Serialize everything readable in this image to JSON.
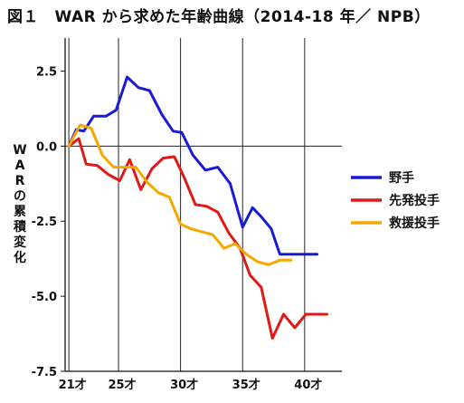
{
  "chart_data": {
    "type": "line",
    "title": "図１　WAR から求めた年齢曲線（2014-18 年／ NPB）",
    "ylabel": "WARの累積変化",
    "xlabel": "",
    "x_ticks": [
      {
        "value": 21,
        "label": "21才"
      },
      {
        "value": 25,
        "label": "25才"
      },
      {
        "value": 30,
        "label": "30才"
      },
      {
        "value": 35,
        "label": "35才"
      },
      {
        "value": 40,
        "label": "40才"
      }
    ],
    "y_ticks": [
      {
        "value": 2.5,
        "label": "2.5"
      },
      {
        "value": 0,
        "label": "0.0"
      },
      {
        "value": -2.5,
        "label": "-2.5"
      },
      {
        "value": -5,
        "label": "-5.0"
      },
      {
        "value": -7.5,
        "label": "-7.5"
      }
    ],
    "xlim": [
      20.7,
      43
    ],
    "ylim": [
      -7.5,
      3.6
    ],
    "grid": "vertical lines at age ticks, horizontal line at 0",
    "legend_position": "right",
    "series": [
      {
        "name": "野手",
        "color": "#1a1ad4",
        "x": [
          21,
          21.6,
          22.2,
          23,
          24,
          24.8,
          25.7,
          26.6,
          27.5,
          28.5,
          29.4,
          30.1,
          31,
          32,
          33,
          34,
          35,
          35.8,
          36.5,
          37.3,
          38,
          39,
          40,
          41
        ],
        "y": [
          0,
          0.55,
          0.5,
          1.0,
          1.0,
          1.2,
          2.3,
          1.95,
          1.85,
          1.05,
          0.5,
          0.45,
          -0.3,
          -0.8,
          -0.7,
          -1.25,
          -2.7,
          -2.05,
          -2.35,
          -2.75,
          -3.6,
          -3.6,
          -3.6,
          -3.6
        ]
      },
      {
        "name": "先発投手",
        "color": "#e01818",
        "x": [
          21,
          21.8,
          22.4,
          23.3,
          24.2,
          25.1,
          25.9,
          26.8,
          27.7,
          28.6,
          29.5,
          30.3,
          31.2,
          32.1,
          33,
          33.9,
          34.8,
          35.6,
          36.5,
          37.4,
          38.3,
          39.2,
          40.1,
          41,
          41.8
        ],
        "y": [
          0,
          0.25,
          -0.6,
          -0.65,
          -0.95,
          -1.15,
          -0.45,
          -1.45,
          -0.75,
          -0.4,
          -0.35,
          -1.05,
          -1.95,
          -2.0,
          -2.2,
          -2.9,
          -3.4,
          -4.3,
          -4.7,
          -6.4,
          -5.6,
          -6.05,
          -5.6,
          -5.6,
          -5.6
        ]
      },
      {
        "name": "救援投手",
        "color": "#f5a800",
        "x": [
          21,
          21.9,
          22.8,
          23.7,
          24.6,
          25.5,
          26.4,
          27.3,
          28.2,
          29.1,
          30,
          30.8,
          31.7,
          32.6,
          33.5,
          34.4,
          35.3,
          36.2,
          37.1,
          38,
          38.9
        ],
        "y": [
          0,
          0.7,
          0.6,
          -0.3,
          -0.7,
          -0.7,
          -0.7,
          -1.2,
          -1.55,
          -1.7,
          -2.6,
          -2.75,
          -2.85,
          -2.95,
          -3.4,
          -3.25,
          -3.6,
          -3.85,
          -3.95,
          -3.8,
          -3.8
        ]
      }
    ]
  }
}
